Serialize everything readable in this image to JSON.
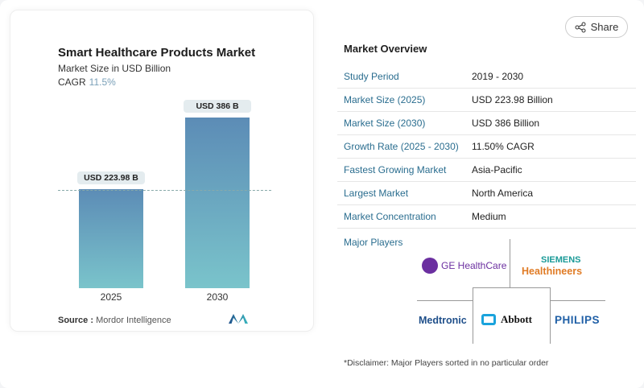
{
  "chart_data": {
    "type": "bar",
    "title": "Smart Healthcare Products Market",
    "subtitle": "Market Size in USD Billion",
    "cagr_label": "CAGR",
    "cagr": "11.5%",
    "categories": [
      "2025",
      "2030"
    ],
    "values": [
      223.98,
      386
    ],
    "data_labels": [
      "USD 223.98 B",
      "USD 386 B"
    ],
    "ylim": [
      0,
      400
    ]
  },
  "source": {
    "label": "Source :",
    "value": "Mordor Intelligence"
  },
  "share_label": "Share",
  "overview": {
    "title": "Market Overview",
    "rows": [
      {
        "k": "Study Period",
        "v": "2019 - 2030"
      },
      {
        "k": "Market Size (2025)",
        "v": "USD 223.98 Billion"
      },
      {
        "k": "Market Size (2030)",
        "v": "USD 386 Billion"
      },
      {
        "k": "Growth Rate (2025 - 2030)",
        "v": "11.50% CAGR"
      },
      {
        "k": "Fastest Growing Market",
        "v": "Asia-Pacific"
      },
      {
        "k": "Largest Market",
        "v": "North America"
      },
      {
        "k": "Market Concentration",
        "v": "Medium"
      }
    ]
  },
  "major_players": {
    "label": "Major Players",
    "players": [
      "GE HealthCare",
      "SIEMENS",
      "Healthineers",
      "Medtronic",
      "Abbott",
      "PHILIPS"
    ]
  },
  "disclaimer": "*Disclaimer: Major Players sorted in no particular order"
}
